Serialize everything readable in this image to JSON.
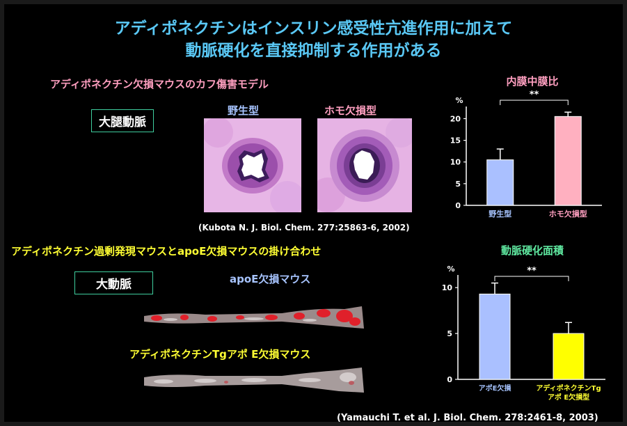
{
  "title": {
    "line1": "アディポネクチンはインスリン感受性亢進作用に加えて",
    "line2": "動脈硬化を直接抑制する作用がある"
  },
  "top": {
    "section_title": "アディポネクチン欠損マウスのカフ傷害モデル",
    "box_label": "大腿動脈",
    "image_label_wt": "野生型",
    "image_label_ko": "ホモ欠損型",
    "citation": "(Kubota N. J. Biol. Chem. 277:25863-6, 2002)"
  },
  "bottom": {
    "section_title": "アディポネクチン過剰発現マウスとapoE欠損マウスの掛け合わせ",
    "box_label": "大動脈",
    "image_label_apoe": "apoE欠損マウス",
    "image_label_tg": "アディポネクチンTgアポ E欠損マウス",
    "citation": "(Yamauchi T. et al. J. Biol. Chem. 278:2461-8, 2003)"
  },
  "colors": {
    "blue_bar": "#aac0ff",
    "pink_bar": "#ffb0c0",
    "yellow_bar": "#ffff00",
    "title": "#5ac8f5"
  },
  "chart_data": [
    {
      "type": "bar",
      "title": "内膜中膜比",
      "ylabel": "%",
      "ylim": [
        0,
        22
      ],
      "yticks": [
        0,
        5,
        10,
        15,
        20
      ],
      "categories": [
        "野生型",
        "ホモ欠損型"
      ],
      "values": [
        10.5,
        20.5
      ],
      "errors": [
        2.5,
        1.0
      ],
      "colors": [
        "#aac0ff",
        "#ffb0c0"
      ],
      "label_colors": [
        "#a7c4ff",
        "#ff9fc0"
      ],
      "significance": "**"
    },
    {
      "type": "bar",
      "title": "動脈硬化面積",
      "ylabel": "%",
      "ylim": [
        0,
        11
      ],
      "yticks": [
        0,
        5,
        10
      ],
      "categories": [
        "アポE欠損",
        "アディポネクチンTg\nアポ E欠損型"
      ],
      "values": [
        9.3,
        5.0
      ],
      "errors": [
        1.2,
        1.2
      ],
      "colors": [
        "#aac0ff",
        "#ffff00"
      ],
      "label_colors": [
        "#a7c4ff",
        "#ffff33"
      ],
      "significance": "**"
    }
  ]
}
